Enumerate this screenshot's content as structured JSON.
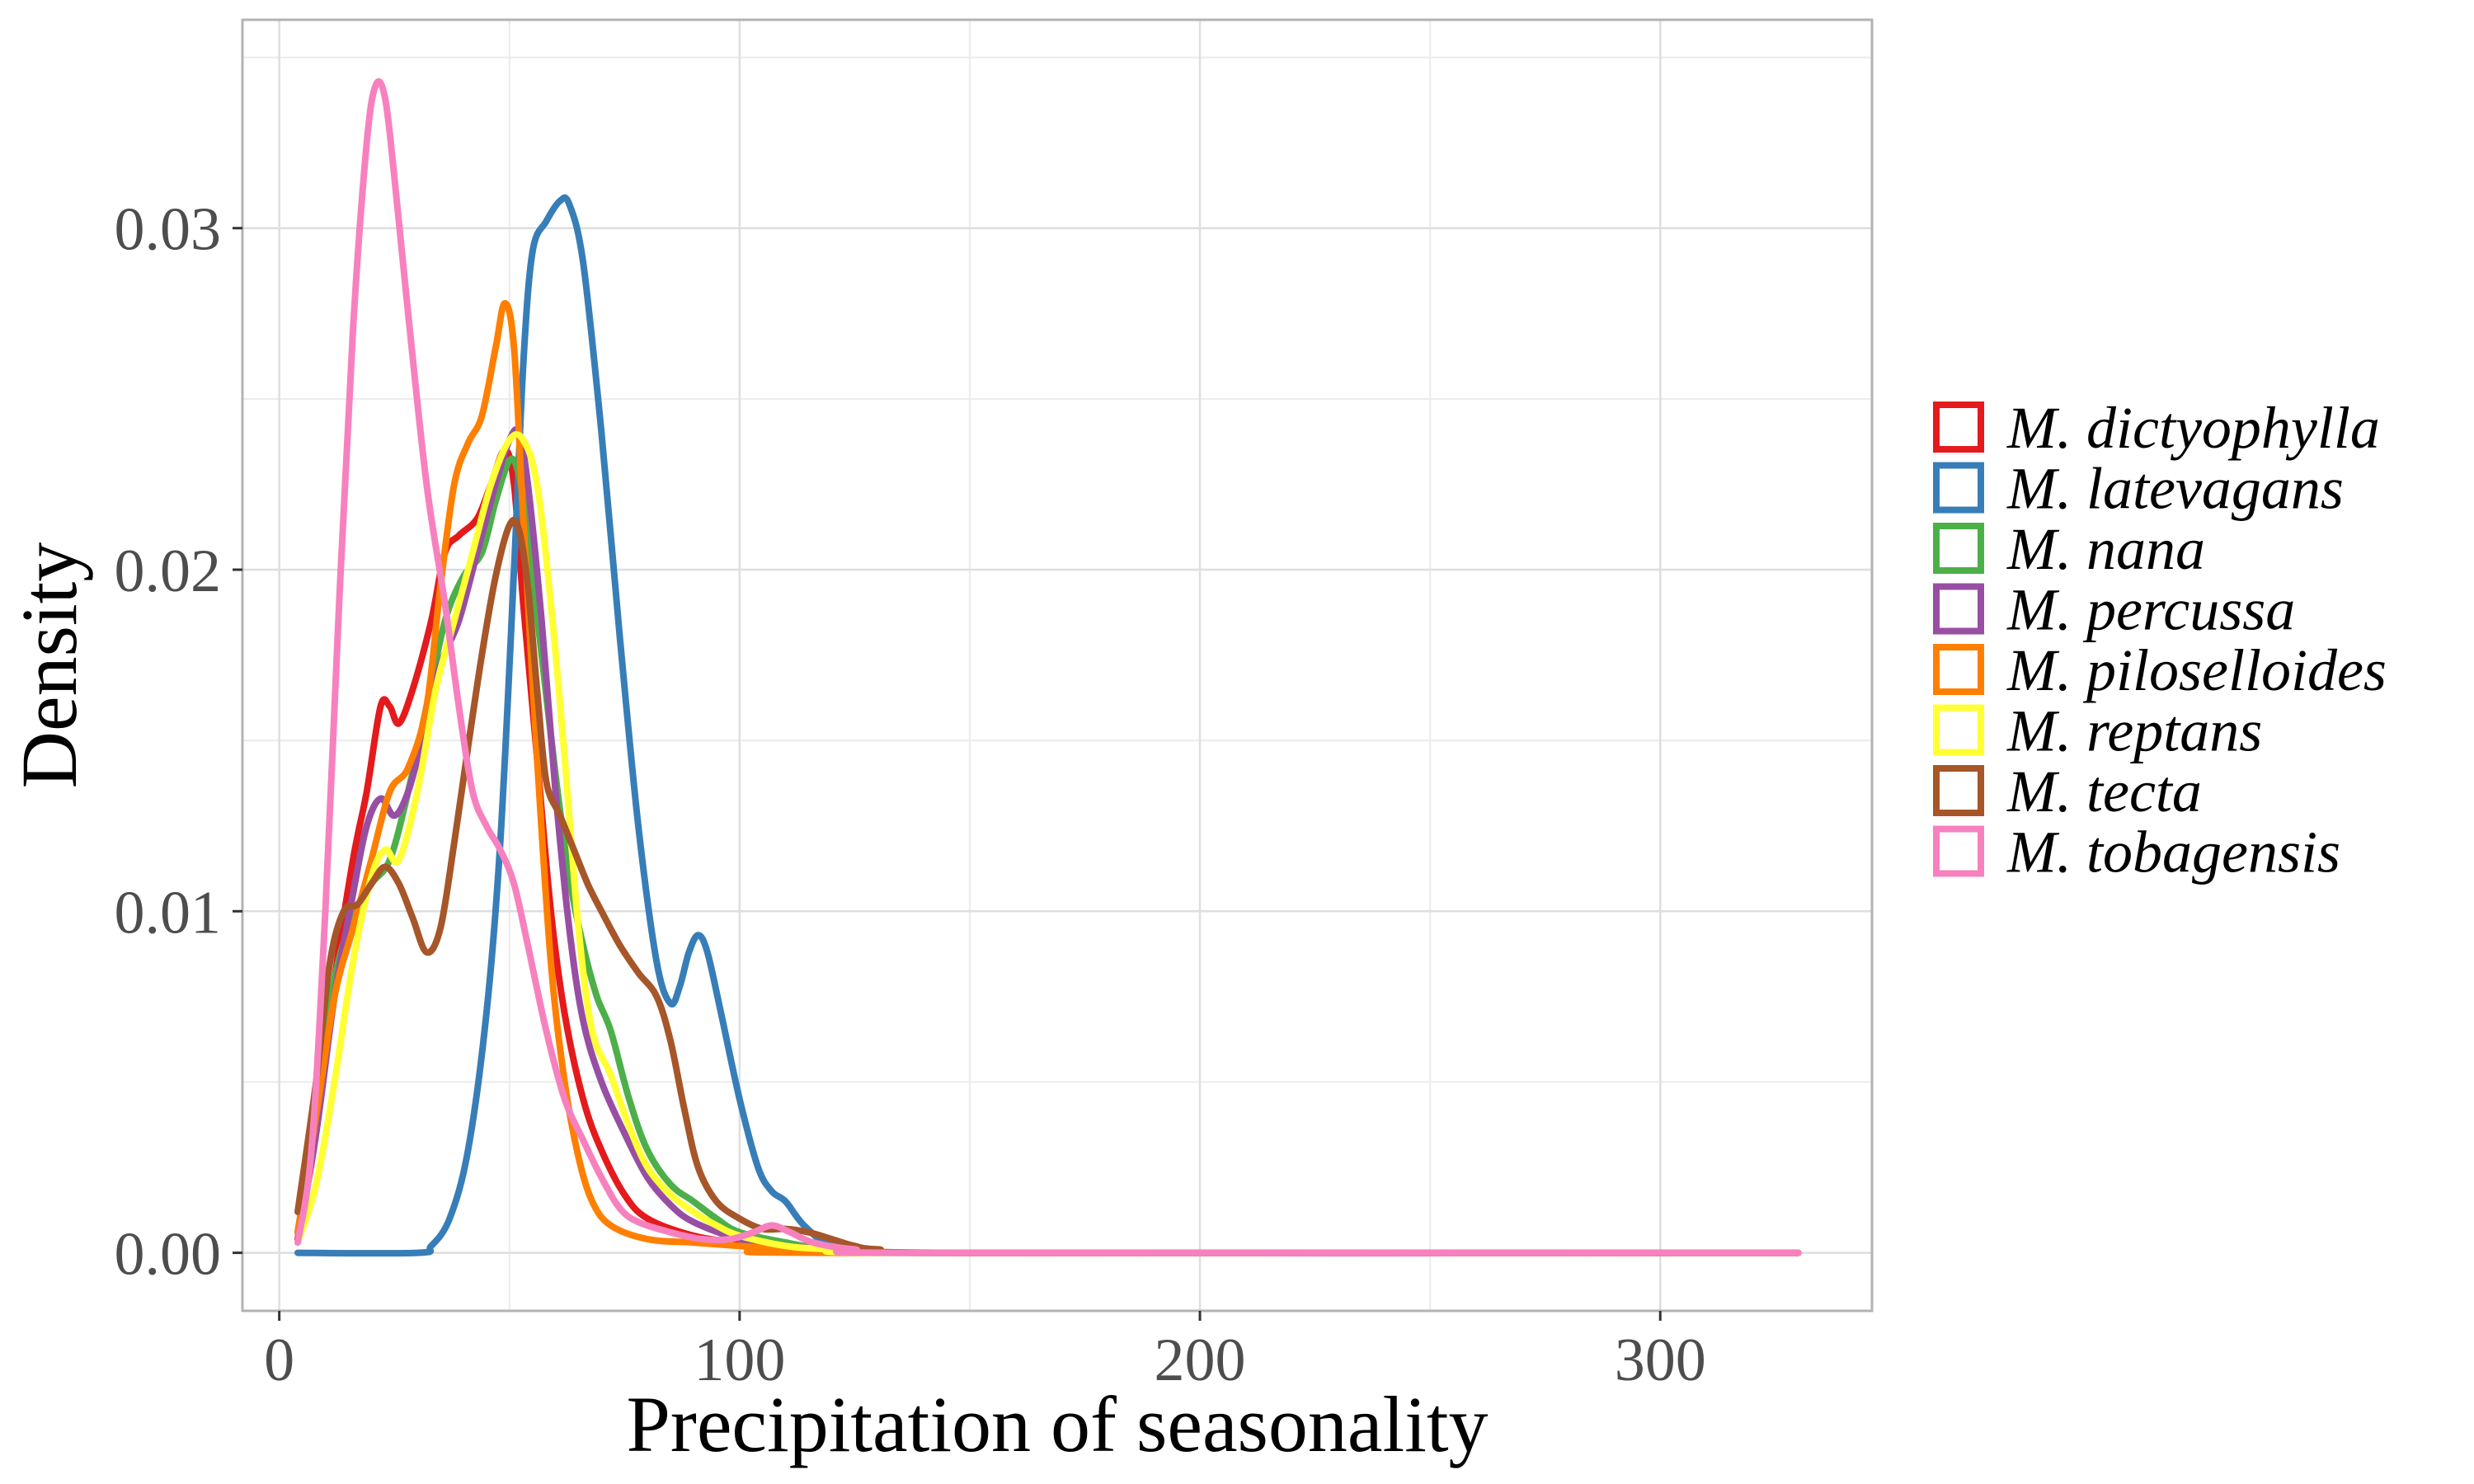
{
  "chart_data": {
    "type": "line",
    "title": "",
    "xlabel": "Precipitation of seasonality",
    "ylabel": "Density",
    "xlim": [
      -8,
      346
    ],
    "ylim": [
      -0.0017,
      0.0361
    ],
    "x_ticks": [
      0,
      100,
      200,
      300
    ],
    "x_tick_labels": [
      "0",
      "100",
      "200",
      "300"
    ],
    "y_ticks": [
      0.0,
      0.01,
      0.02,
      0.03
    ],
    "y_tick_labels": [
      "0.00",
      "0.01",
      "0.02",
      "0.03"
    ],
    "grid": true,
    "legend_position": "right",
    "series": [
      {
        "name": "M. dictyophylla",
        "color": "#E41A1C",
        "points": [
          [
            4,
            0.0004
          ],
          [
            8,
            0.0035
          ],
          [
            12,
            0.008
          ],
          [
            16,
            0.0115
          ],
          [
            19,
            0.0135
          ],
          [
            22,
            0.016
          ],
          [
            24,
            0.016
          ],
          [
            26,
            0.0155
          ],
          [
            29,
            0.0165
          ],
          [
            33,
            0.0185
          ],
          [
            36,
            0.0205
          ],
          [
            39,
            0.021
          ],
          [
            43,
            0.0215
          ],
          [
            46,
            0.0225
          ],
          [
            49,
            0.0235
          ],
          [
            51,
            0.0225
          ],
          [
            53,
            0.019
          ],
          [
            56,
            0.0145
          ],
          [
            59,
            0.01
          ],
          [
            62,
            0.007
          ],
          [
            66,
            0.0045
          ],
          [
            70,
            0.003
          ],
          [
            75,
            0.0017
          ],
          [
            80,
            0.001
          ],
          [
            90,
            0.0005
          ],
          [
            100,
            0.0003
          ],
          [
            110,
            0.0002
          ],
          [
            120,
            0.0001
          ],
          [
            140,
            0.0
          ],
          [
            330,
            0.0
          ]
        ]
      },
      {
        "name": "M. latevagans",
        "color": "#377EB8",
        "points": [
          [
            4,
            0.0
          ],
          [
            30,
            0.0
          ],
          [
            33,
            0.0002
          ],
          [
            37,
            0.001
          ],
          [
            41,
            0.003
          ],
          [
            45,
            0.007
          ],
          [
            48,
            0.012
          ],
          [
            51,
            0.02
          ],
          [
            53,
            0.026
          ],
          [
            55,
            0.0293
          ],
          [
            58,
            0.0302
          ],
          [
            61,
            0.0308
          ],
          [
            63,
            0.0307
          ],
          [
            66,
            0.029
          ],
          [
            70,
            0.024
          ],
          [
            74,
            0.018
          ],
          [
            78,
            0.0125
          ],
          [
            82,
            0.0085
          ],
          [
            85,
            0.0073
          ],
          [
            87,
            0.0078
          ],
          [
            89,
            0.0088
          ],
          [
            91,
            0.0093
          ],
          [
            93,
            0.0088
          ],
          [
            96,
            0.007
          ],
          [
            100,
            0.0045
          ],
          [
            104,
            0.0025
          ],
          [
            107,
            0.0018
          ],
          [
            110,
            0.0015
          ],
          [
            114,
            0.0008
          ],
          [
            120,
            0.0002
          ],
          [
            130,
            0.0
          ],
          [
            330,
            0.0
          ]
        ]
      },
      {
        "name": "M. nana",
        "color": "#4DAF4A",
        "points": [
          [
            4,
            0.0006
          ],
          [
            8,
            0.004
          ],
          [
            12,
            0.008
          ],
          [
            16,
            0.0098
          ],
          [
            20,
            0.0108
          ],
          [
            24,
            0.0115
          ],
          [
            28,
            0.0135
          ],
          [
            32,
            0.016
          ],
          [
            36,
            0.0185
          ],
          [
            40,
            0.0198
          ],
          [
            44,
            0.0205
          ],
          [
            47,
            0.022
          ],
          [
            50,
            0.0232
          ],
          [
            52,
            0.0228
          ],
          [
            54,
            0.021
          ],
          [
            57,
            0.0175
          ],
          [
            60,
            0.014
          ],
          [
            63,
            0.011
          ],
          [
            66,
            0.009
          ],
          [
            69,
            0.0075
          ],
          [
            72,
            0.0065
          ],
          [
            76,
            0.0045
          ],
          [
            80,
            0.003
          ],
          [
            85,
            0.002
          ],
          [
            90,
            0.0015
          ],
          [
            95,
            0.001
          ],
          [
            100,
            0.0006
          ],
          [
            110,
            0.0003
          ],
          [
            120,
            0.0001
          ],
          [
            140,
            0.0
          ],
          [
            330,
            0.0
          ]
        ]
      },
      {
        "name": "M. percussa",
        "color": "#984EA3",
        "points": [
          [
            4,
            0.0006
          ],
          [
            8,
            0.0035
          ],
          [
            12,
            0.0075
          ],
          [
            16,
            0.0105
          ],
          [
            19,
            0.0125
          ],
          [
            22,
            0.0133
          ],
          [
            25,
            0.0128
          ],
          [
            28,
            0.0135
          ],
          [
            31,
            0.015
          ],
          [
            35,
            0.0172
          ],
          [
            39,
            0.0185
          ],
          [
            43,
            0.0205
          ],
          [
            47,
            0.0225
          ],
          [
            50,
            0.0238
          ],
          [
            52,
            0.024
          ],
          [
            54,
            0.0225
          ],
          [
            57,
            0.0185
          ],
          [
            60,
            0.0135
          ],
          [
            63,
            0.0095
          ],
          [
            66,
            0.0068
          ],
          [
            70,
            0.005
          ],
          [
            75,
            0.0035
          ],
          [
            80,
            0.0022
          ],
          [
            85,
            0.0014
          ],
          [
            90,
            0.0009
          ],
          [
            100,
            0.0004
          ],
          [
            110,
            0.0002
          ],
          [
            120,
            0.0001
          ],
          [
            140,
            0.0
          ],
          [
            330,
            0.0
          ]
        ]
      },
      {
        "name": "M. piloselloides",
        "color": "#FF7F00",
        "points": [
          [
            4,
            0.0006
          ],
          [
            8,
            0.004
          ],
          [
            12,
            0.0075
          ],
          [
            16,
            0.0095
          ],
          [
            20,
            0.0115
          ],
          [
            24,
            0.0135
          ],
          [
            28,
            0.0142
          ],
          [
            32,
            0.016
          ],
          [
            35,
            0.0195
          ],
          [
            38,
            0.0225
          ],
          [
            41,
            0.0237
          ],
          [
            44,
            0.0245
          ],
          [
            47,
            0.0265
          ],
          [
            49,
            0.0278
          ],
          [
            51,
            0.0265
          ],
          [
            53,
            0.0215
          ],
          [
            56,
            0.0145
          ],
          [
            59,
            0.0085
          ],
          [
            62,
            0.005
          ],
          [
            65,
            0.0028
          ],
          [
            68,
            0.0015
          ],
          [
            72,
            0.0008
          ],
          [
            80,
            0.0004
          ],
          [
            90,
            0.0003
          ],
          [
            100,
            0.0002
          ],
          [
            110,
            0.0001
          ],
          [
            120,
            0.0
          ],
          [
            330,
            0.0
          ]
        ]
      },
      {
        "name": "M. reptans",
        "color": "#FFFF33",
        "points": [
          [
            4,
            0.0003
          ],
          [
            8,
            0.002
          ],
          [
            12,
            0.005
          ],
          [
            16,
            0.0085
          ],
          [
            20,
            0.011
          ],
          [
            23,
            0.0118
          ],
          [
            26,
            0.0115
          ],
          [
            30,
            0.0135
          ],
          [
            34,
            0.0165
          ],
          [
            38,
            0.0185
          ],
          [
            42,
            0.0205
          ],
          [
            46,
            0.0225
          ],
          [
            50,
            0.0238
          ],
          [
            53,
            0.0238
          ],
          [
            56,
            0.0225
          ],
          [
            59,
            0.019
          ],
          [
            62,
            0.0145
          ],
          [
            65,
            0.0095
          ],
          [
            68,
            0.0065
          ],
          [
            72,
            0.0052
          ],
          [
            76,
            0.0037
          ],
          [
            80,
            0.0025
          ],
          [
            85,
            0.0017
          ],
          [
            90,
            0.0012
          ],
          [
            95,
            0.0008
          ],
          [
            100,
            0.0005
          ],
          [
            110,
            0.0002
          ],
          [
            120,
            0.0001
          ],
          [
            140,
            0.0
          ],
          [
            330,
            0.0
          ]
        ]
      },
      {
        "name": "M. tecta",
        "color": "#A65628",
        "points": [
          [
            4,
            0.0012
          ],
          [
            8,
            0.005
          ],
          [
            11,
            0.0085
          ],
          [
            14,
            0.01
          ],
          [
            17,
            0.0102
          ],
          [
            20,
            0.0108
          ],
          [
            23,
            0.0113
          ],
          [
            26,
            0.0108
          ],
          [
            29,
            0.0098
          ],
          [
            32,
            0.0088
          ],
          [
            35,
            0.0095
          ],
          [
            38,
            0.012
          ],
          [
            41,
            0.0148
          ],
          [
            44,
            0.0175
          ],
          [
            47,
            0.0198
          ],
          [
            50,
            0.0213
          ],
          [
            52,
            0.0212
          ],
          [
            54,
            0.0195
          ],
          [
            56,
            0.0165
          ],
          [
            58,
            0.0138
          ],
          [
            61,
            0.0128
          ],
          [
            64,
            0.0118
          ],
          [
            67,
            0.0108
          ],
          [
            70,
            0.01
          ],
          [
            74,
            0.009
          ],
          [
            78,
            0.0082
          ],
          [
            82,
            0.0075
          ],
          [
            85,
            0.0062
          ],
          [
            88,
            0.0042
          ],
          [
            91,
            0.0025
          ],
          [
            95,
            0.0015
          ],
          [
            100,
            0.001
          ],
          [
            105,
            0.0007
          ],
          [
            110,
            0.0007
          ],
          [
            115,
            0.0006
          ],
          [
            120,
            0.0004
          ],
          [
            125,
            0.0002
          ],
          [
            130,
            0.0001
          ],
          [
            150,
            0.0
          ],
          [
            330,
            0.0
          ]
        ]
      },
      {
        "name": "M. tobagensis",
        "color": "#F781BF",
        "points": [
          [
            4,
            0.0003
          ],
          [
            7,
            0.003
          ],
          [
            10,
            0.01
          ],
          [
            13,
            0.019
          ],
          [
            16,
            0.027
          ],
          [
            19,
            0.0325
          ],
          [
            21,
            0.0342
          ],
          [
            23,
            0.0338
          ],
          [
            25,
            0.0315
          ],
          [
            28,
            0.0275
          ],
          [
            32,
            0.0225
          ],
          [
            36,
            0.019
          ],
          [
            39,
            0.016
          ],
          [
            42,
            0.0135
          ],
          [
            45,
            0.0125
          ],
          [
            48,
            0.0118
          ],
          [
            51,
            0.0108
          ],
          [
            54,
            0.009
          ],
          [
            58,
            0.0065
          ],
          [
            62,
            0.0045
          ],
          [
            66,
            0.0033
          ],
          [
            70,
            0.0022
          ],
          [
            74,
            0.0013
          ],
          [
            78,
            0.0009
          ],
          [
            85,
            0.0006
          ],
          [
            92,
            0.0004
          ],
          [
            98,
            0.0004
          ],
          [
            103,
            0.0006
          ],
          [
            107,
            0.0008
          ],
          [
            111,
            0.0006
          ],
          [
            116,
            0.0003
          ],
          [
            125,
            0.0001
          ],
          [
            140,
            0.0
          ],
          [
            330,
            0.0
          ]
        ]
      }
    ]
  }
}
